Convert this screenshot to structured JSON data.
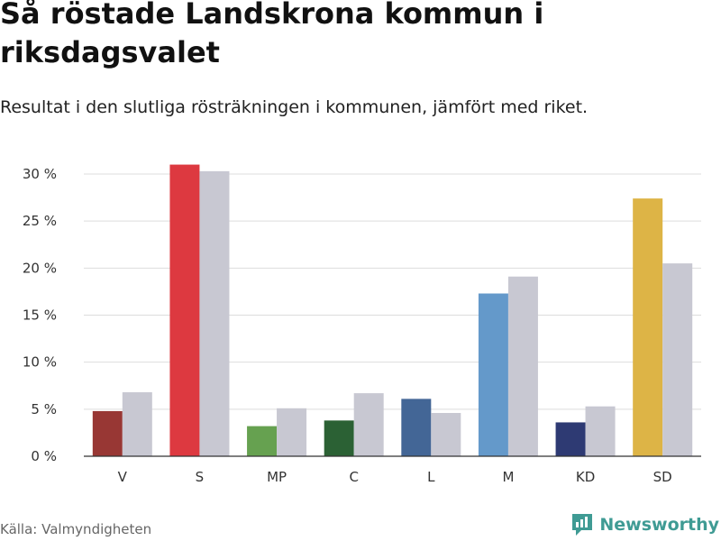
{
  "header": {
    "title": "Så röstade Landskrona kommun i riksdagsvalet",
    "subtitle": "Resultat i den slutliga rösträkningen i kommunen, jämfört med riket."
  },
  "footer": {
    "source": "Källa: Valmyndigheten",
    "brand": "Newsworthy"
  },
  "colors": {
    "national": "#c8c8d2",
    "grid": "#dddddd",
    "axis": "#333333",
    "brand": "#3f9b94"
  },
  "chart_data": {
    "type": "bar",
    "categories": [
      "V",
      "S",
      "MP",
      "C",
      "L",
      "M",
      "KD",
      "SD"
    ],
    "series": [
      {
        "name": "Landskrona kommun",
        "values": [
          4.8,
          31.0,
          3.2,
          3.8,
          6.1,
          17.3,
          3.6,
          27.4
        ],
        "colors": [
          "#983734",
          "#dd3940",
          "#66a150",
          "#2b6134",
          "#436696",
          "#6499ca",
          "#2e3a73",
          "#ddb446"
        ]
      },
      {
        "name": "Riket",
        "values": [
          6.8,
          30.3,
          5.1,
          6.7,
          4.6,
          19.1,
          5.3,
          20.5
        ],
        "color": "#c8c8d2"
      }
    ],
    "ylim": [
      0,
      30
    ],
    "yticks": [
      0,
      5,
      10,
      15,
      20,
      25,
      30
    ],
    "ytick_labels": [
      "0 %",
      "5 %",
      "10 %",
      "15 %",
      "20 %",
      "25 %",
      "30 %"
    ],
    "xlabel": "",
    "ylabel": "",
    "grid": true
  }
}
